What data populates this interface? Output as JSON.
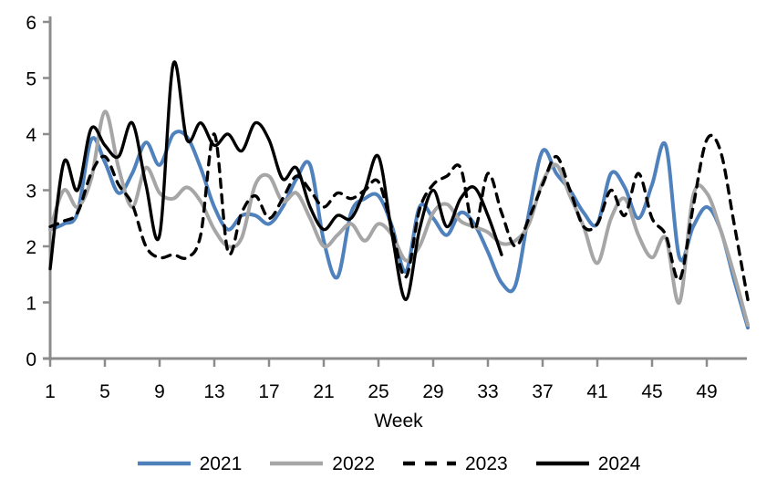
{
  "chart_data": {
    "type": "line",
    "title": "",
    "xlabel": "Week",
    "ylabel": "",
    "x_range": [
      1,
      52
    ],
    "ylim": [
      0,
      6
    ],
    "x_tick_labels": [
      1,
      5,
      9,
      13,
      17,
      21,
      25,
      29,
      33,
      37,
      41,
      45,
      49
    ],
    "y_tick_labels": [
      0,
      1,
      2,
      3,
      4,
      5,
      6
    ],
    "grid": "off",
    "legend_position": "bottom",
    "axis_color": "#8C8C8C",
    "text_color": "#000000",
    "weeks_start": 1,
    "series": [
      {
        "name": "2021",
        "color": "#4F81BD",
        "dash": false,
        "width": 4,
        "values": [
          2.3,
          2.4,
          2.6,
          3.9,
          3.5,
          2.95,
          3.3,
          3.85,
          3.45,
          4.0,
          3.95,
          3.4,
          2.7,
          2.3,
          2.55,
          2.55,
          2.4,
          2.7,
          3.2,
          3.45,
          2.1,
          1.45,
          2.6,
          2.85,
          2.9,
          2.35,
          1.55,
          2.7,
          2.5,
          2.2,
          2.6,
          2.4,
          1.9,
          1.35,
          1.3,
          2.6,
          3.7,
          3.3,
          3.0,
          2.6,
          2.4,
          3.3,
          3.05,
          2.5,
          3.1,
          3.8,
          1.8,
          2.35,
          2.7,
          2.3,
          1.4,
          0.55
        ]
      },
      {
        "name": "2022",
        "color": "#A6A6A6",
        "dash": false,
        "width": 4,
        "values": [
          2.3,
          3.0,
          2.7,
          3.2,
          4.4,
          3.4,
          2.7,
          3.4,
          2.95,
          2.85,
          3.05,
          2.8,
          2.3,
          2.0,
          2.15,
          3.1,
          3.25,
          2.8,
          2.95,
          2.5,
          2.0,
          2.2,
          2.4,
          2.1,
          2.4,
          2.2,
          1.75,
          2.0,
          2.6,
          2.75,
          2.45,
          2.35,
          2.25,
          2.05,
          2.1,
          2.4,
          3.15,
          3.45,
          2.9,
          2.35,
          1.7,
          2.5,
          2.85,
          2.2,
          1.8,
          2.15,
          1.0,
          2.9,
          2.95,
          2.3,
          1.5,
          0.6
        ]
      },
      {
        "name": "2023",
        "color": "#000000",
        "dash": true,
        "width": 3.4,
        "values": [
          2.35,
          2.45,
          2.6,
          3.3,
          3.6,
          3.1,
          2.75,
          2.0,
          1.8,
          1.85,
          1.8,
          2.2,
          4.0,
          1.9,
          2.6,
          2.9,
          2.5,
          2.85,
          3.25,
          3.0,
          2.7,
          2.95,
          2.85,
          3.0,
          3.15,
          2.3,
          1.45,
          2.65,
          3.1,
          3.25,
          3.4,
          2.3,
          3.3,
          2.6,
          2.0,
          2.5,
          3.1,
          3.6,
          3.0,
          2.35,
          2.4,
          3.0,
          2.55,
          3.3,
          2.5,
          2.2,
          1.4,
          2.7,
          3.9,
          3.7,
          2.4,
          1.05
        ]
      },
      {
        "name": "2024",
        "color": "#000000",
        "dash": false,
        "width": 3.4,
        "values": [
          1.6,
          3.5,
          3.0,
          4.1,
          3.8,
          3.6,
          4.2,
          3.1,
          2.2,
          5.25,
          3.9,
          4.2,
          3.8,
          4.0,
          3.7,
          4.2,
          3.9,
          3.2,
          3.4,
          2.7,
          2.3,
          2.55,
          2.5,
          3.0,
          3.6,
          2.2,
          1.05,
          2.3,
          3.0,
          2.35,
          2.85,
          3.05,
          2.55,
          1.85
        ]
      }
    ]
  }
}
